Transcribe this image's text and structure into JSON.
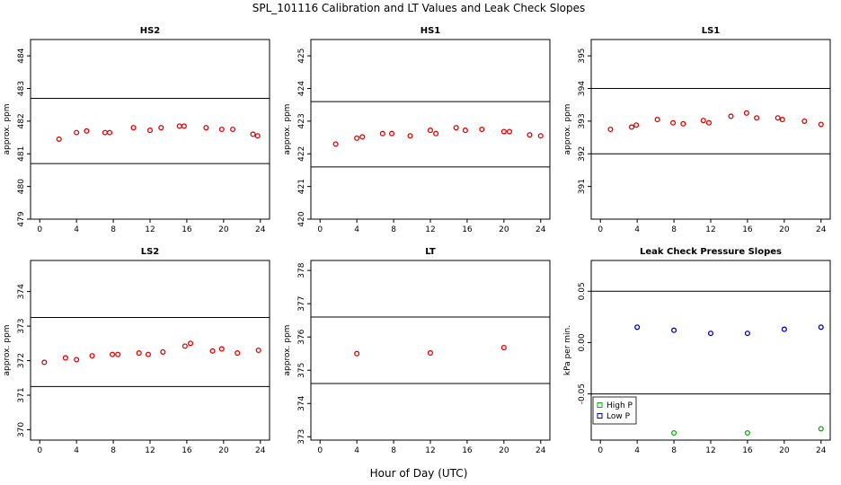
{
  "figure": {
    "title": "SPL_101116  Calibration and LT Values and Leak Check Slopes",
    "xlabel": "Hour of Day (UTC)"
  },
  "chart_data": [
    {
      "type": "scatter",
      "title": "HS2",
      "ylabel": "approx. ppm",
      "xlim": [
        -1,
        25
      ],
      "ylim": [
        479,
        484.5
      ],
      "xticks": [
        0,
        4,
        8,
        12,
        16,
        20,
        24
      ],
      "yticks": [
        479,
        480,
        481,
        482,
        483,
        484
      ],
      "hlines": [
        482.7,
        480.7
      ],
      "series": [
        {
          "color": "#e00000",
          "marker": "circle",
          "x": [
            2.1,
            4.0,
            5.1,
            7.1,
            7.6,
            10.2,
            12.0,
            13.2,
            15.2,
            15.7,
            18.1,
            19.8,
            21.0,
            23.2,
            23.7
          ],
          "y": [
            481.45,
            481.65,
            481.7,
            481.65,
            481.65,
            481.8,
            481.72,
            481.8,
            481.85,
            481.85,
            481.8,
            481.75,
            481.75,
            481.6,
            481.55
          ]
        }
      ]
    },
    {
      "type": "scatter",
      "title": "HS1",
      "ylabel": "approx. ppm",
      "xlim": [
        -1,
        25
      ],
      "ylim": [
        420,
        425.5
      ],
      "xticks": [
        0,
        4,
        8,
        12,
        16,
        20,
        24
      ],
      "yticks": [
        420,
        421,
        422,
        423,
        424,
        425
      ],
      "hlines": [
        423.6,
        421.6
      ],
      "series": [
        {
          "color": "#e00000",
          "marker": "circle",
          "x": [
            1.7,
            4.0,
            4.6,
            6.8,
            7.8,
            9.8,
            12.0,
            12.6,
            14.8,
            15.8,
            17.6,
            20.0,
            20.6,
            22.8,
            24.0
          ],
          "y": [
            422.3,
            422.48,
            422.52,
            422.62,
            422.62,
            422.55,
            422.72,
            422.62,
            422.8,
            422.72,
            422.75,
            422.68,
            422.68,
            422.58,
            422.55
          ]
        }
      ]
    },
    {
      "type": "scatter",
      "title": "LS1",
      "ylabel": "approx. ppm",
      "xlim": [
        -1,
        25
      ],
      "ylim": [
        390,
        395.5
      ],
      "xticks": [
        0,
        4,
        8,
        12,
        16,
        20,
        24
      ],
      "yticks": [
        391,
        392,
        393,
        394,
        395
      ],
      "hlines": [
        394,
        392
      ],
      "series": [
        {
          "color": "#e00000",
          "marker": "circle",
          "x": [
            1.1,
            3.4,
            3.9,
            6.2,
            7.9,
            9.0,
            11.2,
            11.8,
            14.2,
            15.9,
            17.0,
            19.3,
            19.8,
            22.2,
            24.0
          ],
          "y": [
            392.75,
            392.82,
            392.88,
            393.05,
            392.95,
            392.92,
            393.02,
            392.95,
            393.15,
            393.25,
            393.1,
            393.1,
            393.05,
            393.0,
            392.9
          ]
        }
      ]
    },
    {
      "type": "scatter",
      "title": "LS2",
      "ylabel": "approx. ppm",
      "xlim": [
        -1,
        25
      ],
      "ylim": [
        369.7,
        374.9
      ],
      "xticks": [
        0,
        4,
        8,
        12,
        16,
        20,
        24
      ],
      "yticks": [
        370,
        371,
        372,
        373,
        374
      ],
      "hlines": [
        373.25,
        371.25
      ],
      "series": [
        {
          "color": "#e00000",
          "marker": "circle",
          "x": [
            0.5,
            2.8,
            4.0,
            5.7,
            7.9,
            8.5,
            10.8,
            11.8,
            13.4,
            15.8,
            16.4,
            18.8,
            19.8,
            21.5,
            23.8
          ],
          "y": [
            371.95,
            372.08,
            372.03,
            372.14,
            372.18,
            372.18,
            372.22,
            372.18,
            372.25,
            372.42,
            372.5,
            372.28,
            372.34,
            372.22,
            372.3
          ]
        }
      ]
    },
    {
      "type": "scatter",
      "title": "LT",
      "ylabel": "approx. ppm",
      "xlim": [
        -1,
        25
      ],
      "ylim": [
        372.9,
        378.3
      ],
      "xticks": [
        0,
        4,
        8,
        12,
        16,
        20,
        24
      ],
      "yticks": [
        373,
        374,
        375,
        376,
        377,
        378
      ],
      "hlines": [
        376.6,
        374.6
      ],
      "series": [
        {
          "color": "#e00000",
          "marker": "circle",
          "x": [
            4.0,
            12.0,
            20.0
          ],
          "y": [
            375.5,
            375.52,
            375.68
          ]
        }
      ]
    },
    {
      "type": "scatter",
      "title": "Leak Check Pressure Slopes",
      "ylabel": "kPa per min.",
      "xlim": [
        -1,
        25
      ],
      "ylim": [
        -0.095,
        0.08
      ],
      "xticks": [
        0,
        4,
        8,
        12,
        16,
        20,
        24
      ],
      "yticks": [
        -0.05,
        0.0,
        0.05
      ],
      "ytick_labels": [
        "-0.05",
        "0.00",
        "0.05"
      ],
      "hlines": [
        0.05,
        -0.05
      ],
      "legend": "bottom-left",
      "series": [
        {
          "name": "High P",
          "color": "#00b000",
          "marker": "circle",
          "x": [
            8,
            16,
            24
          ],
          "y": [
            -0.088,
            -0.088,
            -0.084
          ]
        },
        {
          "name": "Low P",
          "color": "#0000c0",
          "marker": "circle",
          "x": [
            4,
            8,
            12,
            16,
            20,
            24
          ],
          "y": [
            0.015,
            0.012,
            0.009,
            0.009,
            0.013,
            0.015
          ]
        }
      ]
    }
  ]
}
